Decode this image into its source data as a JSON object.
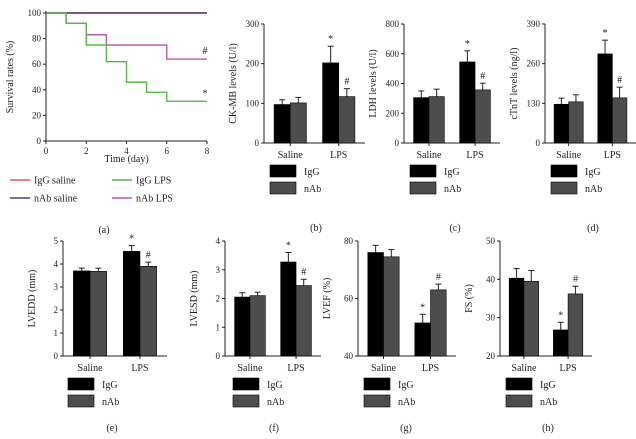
{
  "colors": {
    "IgG": "#000000",
    "nAb": "#4d4d4d",
    "IgG saline": "#e05a5a",
    "nAb saline": "#4a3f8f",
    "IgG LPS": "#58b848",
    "nAb LPS": "#b85ab0",
    "axis": "#222222"
  },
  "chart_data": [
    {
      "id": "a",
      "type": "line",
      "subtype": "survival-step",
      "panel_label": "(a)",
      "xlabel": "Time (day)",
      "ylabel": "Survival rates (%)",
      "xlim": [
        0,
        8
      ],
      "ylim": [
        0,
        100
      ],
      "xticks": [
        0,
        2,
        4,
        6,
        8
      ],
      "yticks": [
        0,
        20,
        40,
        60,
        80,
        100
      ],
      "series": [
        {
          "name": "IgG saline",
          "x": [
            0,
            8
          ],
          "y": [
            100,
            100
          ]
        },
        {
          "name": "nAb saline",
          "x": [
            0,
            8
          ],
          "y": [
            100,
            100
          ]
        },
        {
          "name": "nAb LPS",
          "x": [
            0,
            1,
            2,
            3,
            6,
            8
          ],
          "y": [
            100,
            92,
            83,
            75,
            64,
            64
          ]
        },
        {
          "name": "IgG LPS",
          "x": [
            0,
            1,
            2,
            3,
            4,
            5,
            6,
            8
          ],
          "y": [
            100,
            92,
            75,
            62,
            46,
            38,
            31,
            31
          ]
        }
      ],
      "annotations": [
        {
          "text": "#",
          "series": "nAb LPS"
        },
        {
          "text": "*",
          "series": "IgG LPS"
        }
      ],
      "legend": [
        "IgG saline",
        "IgG LPS",
        "nAb saline",
        "nAb LPS"
      ]
    },
    {
      "id": "b",
      "type": "bar",
      "panel_label": "(b)",
      "ylabel": "CK-MB levels (U/l)",
      "categories": [
        "Saline",
        "LPS"
      ],
      "ylim": [
        0,
        300
      ],
      "yticks": [
        0,
        100,
        200,
        300
      ],
      "series": [
        {
          "name": "IgG",
          "values": [
            97,
            202
          ],
          "errors": [
            12,
            42
          ]
        },
        {
          "name": "nAb",
          "values": [
            101,
            117
          ],
          "errors": [
            14,
            20
          ]
        }
      ],
      "annotations": [
        [
          "",
          ""
        ],
        [
          "*",
          "#"
        ]
      ]
    },
    {
      "id": "c",
      "type": "bar",
      "panel_label": "(c)",
      "ylabel": "LDH levels (U/l)",
      "categories": [
        "Saline",
        "LPS"
      ],
      "ylim": [
        0,
        800
      ],
      "yticks": [
        0,
        200,
        400,
        600,
        800
      ],
      "series": [
        {
          "name": "IgG",
          "values": [
            305,
            545
          ],
          "errors": [
            45,
            75
          ]
        },
        {
          "name": "nAb",
          "values": [
            312,
            357
          ],
          "errors": [
            50,
            45
          ]
        }
      ],
      "annotations": [
        [
          "",
          ""
        ],
        [
          "*",
          "#"
        ]
      ]
    },
    {
      "id": "d",
      "type": "bar",
      "panel_label": "(d)",
      "ylabel": "cTnT levels (ng/l)",
      "categories": [
        "Saline",
        "LPS"
      ],
      "ylim": [
        0,
        390
      ],
      "yticks": [
        0,
        130,
        260,
        390
      ],
      "series": [
        {
          "name": "IgG",
          "values": [
            127,
            292
          ],
          "errors": [
            20,
            45
          ]
        },
        {
          "name": "nAb",
          "values": [
            135,
            148
          ],
          "errors": [
            23,
            35
          ]
        }
      ],
      "annotations": [
        [
          "",
          ""
        ],
        [
          "*",
          "#"
        ]
      ]
    },
    {
      "id": "e",
      "type": "bar",
      "panel_label": "(e)",
      "ylabel": "LVEDD (mm)",
      "categories": [
        "Saline",
        "LPS"
      ],
      "ylim": [
        0,
        5
      ],
      "yticks": [
        0,
        1,
        2,
        3,
        4,
        5
      ],
      "series": [
        {
          "name": "IgG",
          "values": [
            3.7,
            4.55
          ],
          "errors": [
            0.12,
            0.25
          ]
        },
        {
          "name": "nAb",
          "values": [
            3.68,
            3.9
          ],
          "errors": [
            0.14,
            0.18
          ]
        }
      ],
      "annotations": [
        [
          "",
          ""
        ],
        [
          "*",
          "#"
        ]
      ]
    },
    {
      "id": "f",
      "type": "bar",
      "panel_label": "(f)",
      "ylabel": "LVESD (mm)",
      "categories": [
        "Saline",
        "LPS"
      ],
      "ylim": [
        0,
        4
      ],
      "yticks": [
        0,
        1,
        2,
        3,
        4
      ],
      "series": [
        {
          "name": "IgG",
          "values": [
            2.05,
            3.27
          ],
          "errors": [
            0.15,
            0.33
          ]
        },
        {
          "name": "nAb",
          "values": [
            2.1,
            2.45
          ],
          "errors": [
            0.12,
            0.22
          ]
        }
      ],
      "annotations": [
        [
          "",
          ""
        ],
        [
          "*",
          "#"
        ]
      ]
    },
    {
      "id": "g",
      "type": "bar",
      "panel_label": "(g)",
      "ylabel": "LVEF (%)",
      "categories": [
        "Saline",
        "LPS"
      ],
      "ylim": [
        40,
        80
      ],
      "yticks": [
        40,
        60,
        80
      ],
      "series": [
        {
          "name": "IgG",
          "values": [
            76,
            51.5
          ],
          "errors": [
            2.5,
            3
          ]
        },
        {
          "name": "nAb",
          "values": [
            74.5,
            63
          ],
          "errors": [
            2.5,
            2
          ]
        }
      ],
      "annotations": [
        [
          "",
          ""
        ],
        [
          "*",
          "#"
        ]
      ]
    },
    {
      "id": "h",
      "type": "bar",
      "panel_label": "(h)",
      "ylabel": "FS (%)",
      "categories": [
        "Saline",
        "LPS"
      ],
      "ylim": [
        20,
        50
      ],
      "yticks": [
        20,
        30,
        40,
        50
      ],
      "series": [
        {
          "name": "IgG",
          "values": [
            40.3,
            26.8
          ],
          "errors": [
            2.5,
            2
          ]
        },
        {
          "name": "nAb",
          "values": [
            39.5,
            36.2
          ],
          "errors": [
            2.8,
            2
          ]
        }
      ],
      "annotations": [
        [
          "",
          ""
        ],
        [
          "*",
          "#"
        ]
      ]
    }
  ]
}
